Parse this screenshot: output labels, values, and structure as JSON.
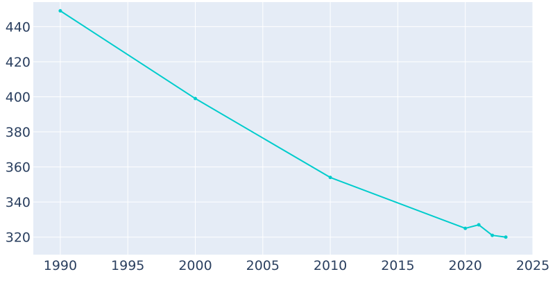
{
  "chart_data": {
    "type": "line",
    "title": "",
    "xlabel": "",
    "ylabel": "",
    "x": [
      1990,
      2000,
      2010,
      2020,
      2021,
      2022,
      2023
    ],
    "series": [
      {
        "values": [
          449,
          399,
          354,
          325,
          327,
          321,
          320
        ]
      }
    ],
    "xlim": [
      1988,
      2025
    ],
    "ylim": [
      310,
      454
    ],
    "xticks": [
      1990,
      1995,
      2000,
      2005,
      2010,
      2015,
      2020,
      2025
    ],
    "yticks": [
      320,
      340,
      360,
      380,
      400,
      420,
      440
    ],
    "grid": true,
    "legend": "none",
    "colors": {
      "line": "#00cccc",
      "plot_background": "#e5ecf6",
      "grid": "#ffffff",
      "tick_text": "#2a3f5f",
      "page_background": "#ffffff"
    }
  }
}
